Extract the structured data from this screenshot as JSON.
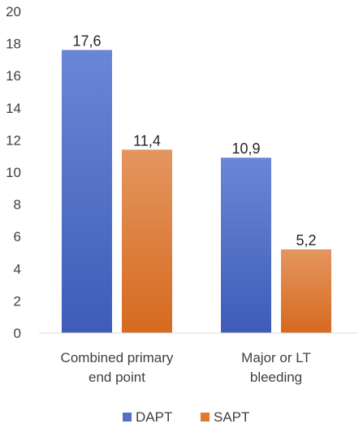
{
  "chart_data": {
    "type": "bar",
    "title": "",
    "xlabel": "",
    "ylabel": "",
    "ylim": [
      0,
      20
    ],
    "yticks": [
      0,
      2,
      4,
      6,
      8,
      10,
      12,
      14,
      16,
      18,
      20
    ],
    "categories": [
      [
        "Combined primary",
        "end point"
      ],
      [
        "Major or LT",
        "bleeding"
      ]
    ],
    "series": [
      {
        "name": "DAPT",
        "color": "#5470C6",
        "values": [
          17.6,
          10.9
        ],
        "labels": [
          "17,6",
          "10,9"
        ]
      },
      {
        "name": "SAPT",
        "color": "#E0782E",
        "values": [
          11.4,
          5.2
        ],
        "labels": [
          "11,4",
          "5,2"
        ]
      }
    ],
    "grid": false,
    "legend": "bottom"
  }
}
